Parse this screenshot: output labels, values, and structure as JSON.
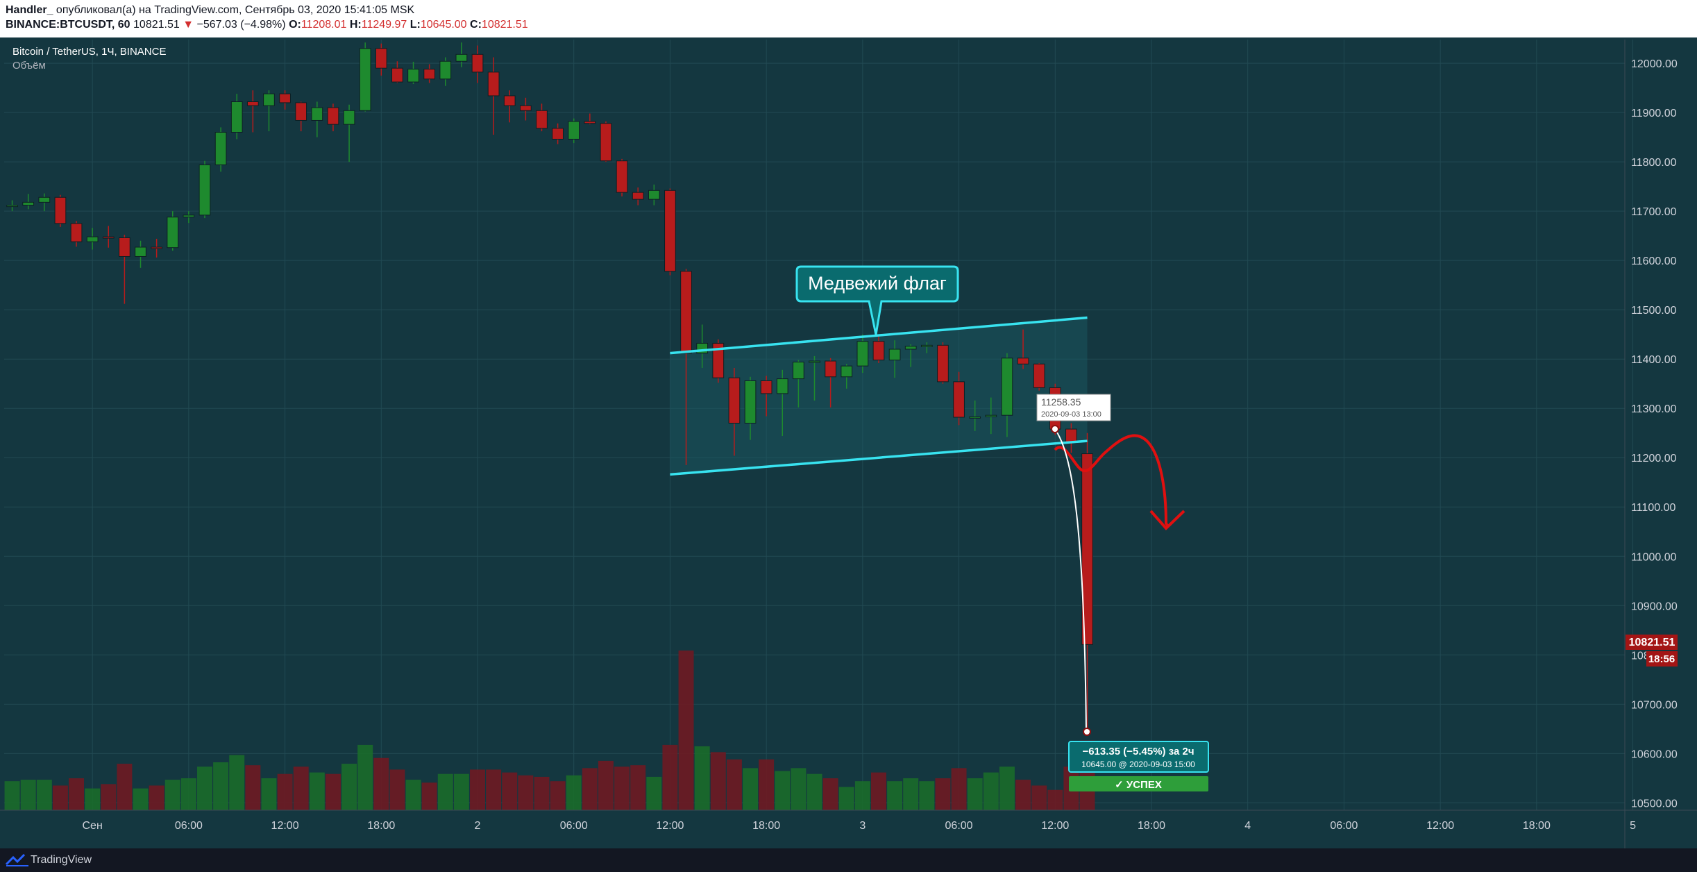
{
  "header": {
    "author": "Handler_",
    "published_text": "опубликовал(а) на TradingView.com, Сентябрь 03, 2020 15:41:05 MSK",
    "symbol": "BINANCE:BTCUSDT, 60",
    "last_price": "10821.51",
    "change": "−567.03 (−4.98%)",
    "o_label": "O:",
    "o_value": "11208.01",
    "h_label": "H:",
    "h_value": "11249.97",
    "l_label": "L:",
    "l_value": "10645.00",
    "c_label": "C:",
    "c_value": "10821.51"
  },
  "legend": {
    "title": "Bitcoin / TetherUS, 1Ч, BINANCE",
    "volume_label": "Объём"
  },
  "footer": {
    "brand": "TradingView"
  },
  "colors": {
    "background": "#143740",
    "up": "#1e8a2e",
    "down": "#b71c1c",
    "channel_line": "#38e3f0",
    "callout_fill": "#0a6b6e",
    "arrow": "#e01010",
    "success": "#2e9e3a"
  },
  "annotations": {
    "callout_text": "Медвежий флаг",
    "point_price": "11258.35",
    "point_time": "2020-09-03 13:00",
    "measure_main": "−613.35 (−5.45%) за 2ч",
    "measure_sub": "10645.00 @ 2020-09-03  15:00",
    "success_text": "✓ УСПЕХ",
    "price_tag": "10821.51",
    "countdown_tag": "18:56"
  },
  "chart_data": {
    "type": "candlestick",
    "title": "Bitcoin / TetherUS, 1Ч, BINANCE",
    "y_ticks": [
      "12000.00",
      "11900.00",
      "11800.00",
      "11700.00",
      "11600.00",
      "11500.00",
      "11400.00",
      "11300.00",
      "11200.00",
      "11100.00",
      "11000.00",
      "10900.00",
      "10800.00",
      "10700.00",
      "10600.00",
      "10500.00"
    ],
    "x_ticks": [
      "Сен",
      "06:00",
      "12:00",
      "18:00",
      "2",
      "06:00",
      "12:00",
      "18:00",
      "3",
      "06:00",
      "12:00",
      "18:00",
      "4",
      "06:00",
      "12:00",
      "18:00",
      "5"
    ],
    "ylim": [
      10485,
      12048
    ],
    "x_range_hours": [
      -5.5,
      95.5
    ],
    "candles": [
      {
        "o": 11710,
        "h": 11722,
        "l": 11700,
        "c": 11712
      },
      {
        "o": 11712,
        "h": 11735,
        "l": 11704,
        "c": 11718
      },
      {
        "o": 11718,
        "h": 11736,
        "l": 11700,
        "c": 11728
      },
      {
        "o": 11728,
        "h": 11733,
        "l": 11668,
        "c": 11675
      },
      {
        "o": 11675,
        "h": 11680,
        "l": 11628,
        "c": 11638
      },
      {
        "o": 11638,
        "h": 11666,
        "l": 11622,
        "c": 11648
      },
      {
        "o": 11648,
        "h": 11670,
        "l": 11626,
        "c": 11646
      },
      {
        "o": 11646,
        "h": 11652,
        "l": 11512,
        "c": 11608
      },
      {
        "o": 11608,
        "h": 11640,
        "l": 11585,
        "c": 11627
      },
      {
        "o": 11627,
        "h": 11644,
        "l": 11606,
        "c": 11626
      },
      {
        "o": 11626,
        "h": 11700,
        "l": 11620,
        "c": 11688
      },
      {
        "o": 11688,
        "h": 11700,
        "l": 11676,
        "c": 11692
      },
      {
        "o": 11692,
        "h": 11802,
        "l": 11686,
        "c": 11794
      },
      {
        "o": 11794,
        "h": 11870,
        "l": 11780,
        "c": 11860
      },
      {
        "o": 11860,
        "h": 11938,
        "l": 11846,
        "c": 11922
      },
      {
        "o": 11922,
        "h": 11945,
        "l": 11860,
        "c": 11914
      },
      {
        "o": 11914,
        "h": 11945,
        "l": 11862,
        "c": 11938
      },
      {
        "o": 11938,
        "h": 11945,
        "l": 11906,
        "c": 11920
      },
      {
        "o": 11920,
        "h": 11922,
        "l": 11862,
        "c": 11884
      },
      {
        "o": 11884,
        "h": 11922,
        "l": 11850,
        "c": 11910
      },
      {
        "o": 11910,
        "h": 11918,
        "l": 11862,
        "c": 11876
      },
      {
        "o": 11876,
        "h": 11916,
        "l": 11800,
        "c": 11904
      },
      {
        "o": 11904,
        "h": 12042,
        "l": 11902,
        "c": 12030
      },
      {
        "o": 12030,
        "h": 12040,
        "l": 11975,
        "c": 11990
      },
      {
        "o": 11990,
        "h": 12004,
        "l": 11960,
        "c": 11962
      },
      {
        "o": 11962,
        "h": 12003,
        "l": 11958,
        "c": 11988
      },
      {
        "o": 11988,
        "h": 11998,
        "l": 11960,
        "c": 11968
      },
      {
        "o": 11968,
        "h": 12012,
        "l": 11954,
        "c": 12004
      },
      {
        "o": 12004,
        "h": 12042,
        "l": 11992,
        "c": 12018
      },
      {
        "o": 12018,
        "h": 12036,
        "l": 11960,
        "c": 11982
      },
      {
        "o": 11982,
        "h": 12012,
        "l": 11855,
        "c": 11934
      },
      {
        "o": 11934,
        "h": 11945,
        "l": 11880,
        "c": 11914
      },
      {
        "o": 11914,
        "h": 11930,
        "l": 11884,
        "c": 11904
      },
      {
        "o": 11904,
        "h": 11918,
        "l": 11862,
        "c": 11868
      },
      {
        "o": 11868,
        "h": 11878,
        "l": 11836,
        "c": 11846
      },
      {
        "o": 11846,
        "h": 11888,
        "l": 11838,
        "c": 11882
      },
      {
        "o": 11882,
        "h": 11898,
        "l": 11876,
        "c": 11878
      },
      {
        "o": 11878,
        "h": 11882,
        "l": 11800,
        "c": 11802
      },
      {
        "o": 11802,
        "h": 11806,
        "l": 11730,
        "c": 11738
      },
      {
        "o": 11738,
        "h": 11748,
        "l": 11712,
        "c": 11724
      },
      {
        "o": 11724,
        "h": 11754,
        "l": 11712,
        "c": 11742
      },
      {
        "o": 11742,
        "h": 11746,
        "l": 11570,
        "c": 11578
      },
      {
        "o": 11578,
        "h": 11583,
        "l": 11185,
        "c": 11412
      },
      {
        "o": 11412,
        "h": 11470,
        "l": 11382,
        "c": 11432
      },
      {
        "o": 11432,
        "h": 11440,
        "l": 11352,
        "c": 11362
      },
      {
        "o": 11362,
        "h": 11382,
        "l": 11204,
        "c": 11270
      },
      {
        "o": 11270,
        "h": 11364,
        "l": 11236,
        "c": 11356
      },
      {
        "o": 11356,
        "h": 11366,
        "l": 11284,
        "c": 11330
      },
      {
        "o": 11330,
        "h": 11378,
        "l": 11244,
        "c": 11360
      },
      {
        "o": 11360,
        "h": 11398,
        "l": 11302,
        "c": 11394
      },
      {
        "o": 11394,
        "h": 11406,
        "l": 11316,
        "c": 11396
      },
      {
        "o": 11396,
        "h": 11402,
        "l": 11302,
        "c": 11364
      },
      {
        "o": 11364,
        "h": 11390,
        "l": 11340,
        "c": 11386
      },
      {
        "o": 11386,
        "h": 11450,
        "l": 11372,
        "c": 11436
      },
      {
        "o": 11436,
        "h": 11446,
        "l": 11392,
        "c": 11398
      },
      {
        "o": 11398,
        "h": 11438,
        "l": 11362,
        "c": 11420
      },
      {
        "o": 11420,
        "h": 11430,
        "l": 11384,
        "c": 11426
      },
      {
        "o": 11426,
        "h": 11434,
        "l": 11412,
        "c": 11428
      },
      {
        "o": 11428,
        "h": 11434,
        "l": 11350,
        "c": 11354
      },
      {
        "o": 11354,
        "h": 11374,
        "l": 11266,
        "c": 11282
      },
      {
        "o": 11282,
        "h": 11316,
        "l": 11254,
        "c": 11283
      },
      {
        "o": 11283,
        "h": 11322,
        "l": 11248,
        "c": 11286
      },
      {
        "o": 11286,
        "h": 11412,
        "l": 11242,
        "c": 11402
      },
      {
        "o": 11402,
        "h": 11460,
        "l": 11380,
        "c": 11390
      },
      {
        "o": 11390,
        "h": 11392,
        "l": 11336,
        "c": 11342
      },
      {
        "o": 11342,
        "h": 11350,
        "l": 11246,
        "c": 11258
      },
      {
        "o": 11258,
        "h": 11270,
        "l": 11210,
        "c": 11230
      },
      {
        "o": 11208,
        "h": 11250,
        "l": 10645,
        "c": 10821
      }
    ],
    "volume": [
      20,
      21,
      21,
      17,
      22,
      15,
      18,
      32,
      15,
      17,
      21,
      22,
      30,
      33,
      38,
      31,
      22,
      25,
      30,
      26,
      25,
      32,
      45,
      36,
      28,
      21,
      19,
      25,
      25,
      28,
      28,
      26,
      24,
      23,
      20,
      24,
      29,
      34,
      30,
      31,
      23,
      45,
      110,
      44,
      40,
      35,
      29,
      35,
      27,
      29,
      25,
      22,
      16,
      20,
      26,
      20,
      22,
      20,
      22,
      29,
      22,
      26,
      30,
      21,
      17,
      14,
      30,
      48
    ],
    "channel_upper": {
      "x1_hours": 36,
      "y1": 11412,
      "x2_hours": 62,
      "y2": 11484
    },
    "channel_lower": {
      "x1_hours": 36,
      "y1": 11166,
      "x2_hours": 62,
      "y2": 11234
    }
  }
}
